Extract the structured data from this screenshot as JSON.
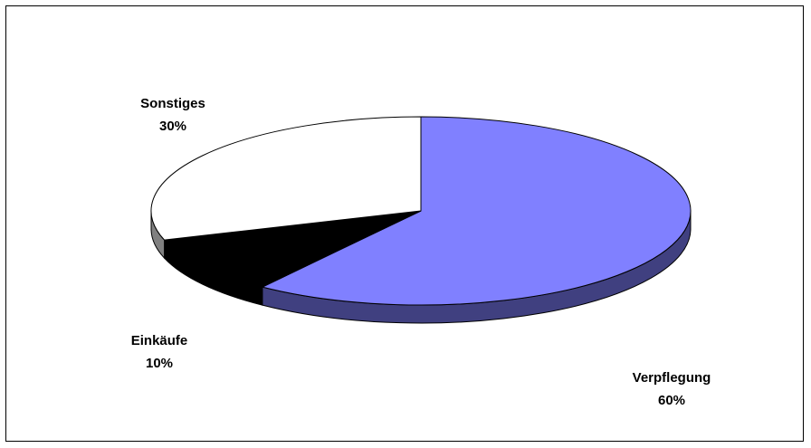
{
  "chart_data": {
    "type": "pie",
    "style": "3d",
    "title": "",
    "legend": "none",
    "slices": [
      {
        "label": "Verpflegung",
        "value": 60,
        "value_label": "60%",
        "color": "#8080ff",
        "side_color": "#404080"
      },
      {
        "label": "Einkäufe",
        "value": 10,
        "value_label": "10%",
        "color": "#000000",
        "side_color": "#000000"
      },
      {
        "label": "Sonstiges",
        "value": 30,
        "value_label": "30%",
        "color": "#ffffff",
        "side_color": "#808080"
      }
    ]
  }
}
